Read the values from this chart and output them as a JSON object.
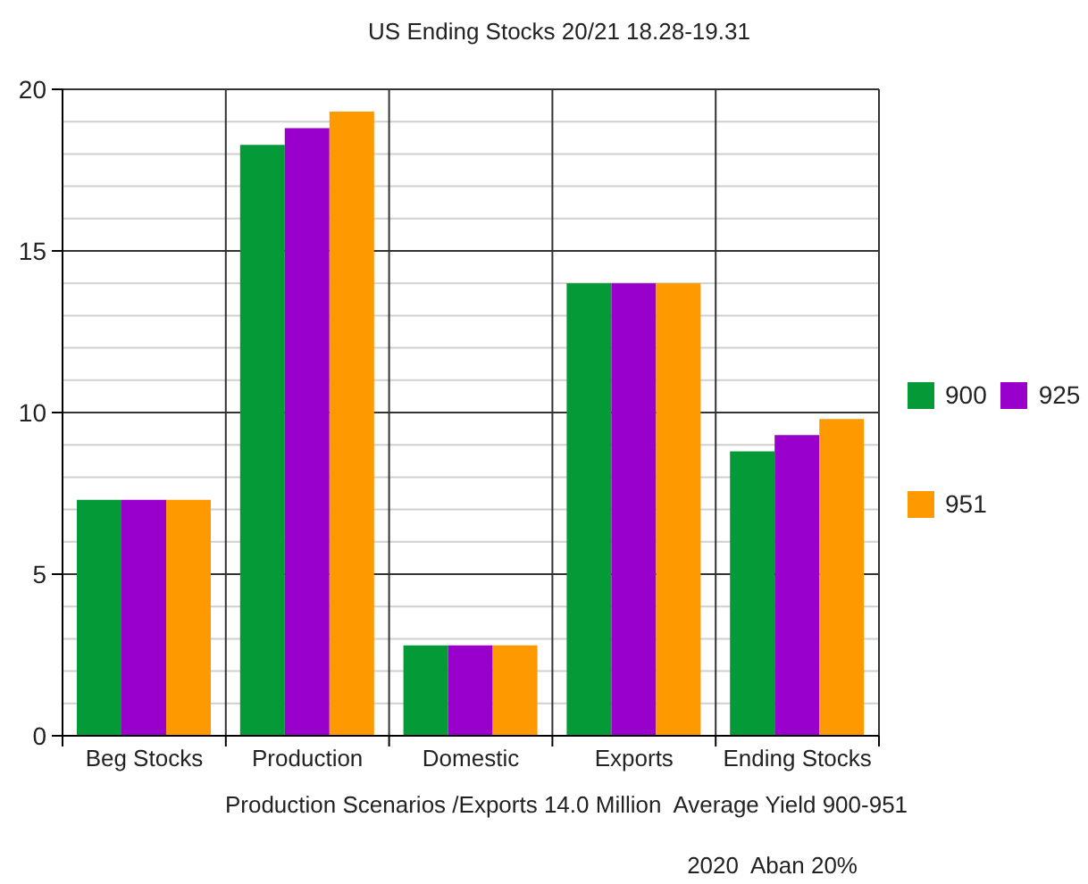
{
  "chart_data": {
    "type": "bar",
    "title": "US Ending Stocks 20/21 18.28-19.31",
    "xlabel": "Production Scenarios /Exports 14.0 Million  Average Yield 900-951",
    "annotations": [
      "2020  Aban 20%"
    ],
    "categories": [
      "Beg Stocks",
      "Production",
      "Domestic",
      "Exports",
      "Ending Stocks"
    ],
    "series": [
      {
        "name": "900",
        "color": "#059a38",
        "values": [
          7.3,
          18.28,
          2.8,
          14.0,
          8.8
        ]
      },
      {
        "name": "925",
        "color": "#9900cc",
        "values": [
          7.3,
          18.8,
          2.8,
          14.0,
          9.3
        ]
      },
      {
        "name": "951",
        "color": "#ff9900",
        "values": [
          7.3,
          19.31,
          2.8,
          14.0,
          9.8
        ]
      }
    ],
    "ylim": [
      0,
      20
    ],
    "yticks": [
      0,
      {
        "value": 1,
        "label": null
      },
      {
        "value": 2,
        "label": null
      },
      {
        "value": 3,
        "label": null
      },
      {
        "value": 4,
        "label": null
      },
      5,
      {
        "value": 6,
        "label": null
      },
      {
        "value": 7,
        "label": null
      },
      {
        "value": 8,
        "label": null
      },
      {
        "value": 9,
        "label": null
      },
      10,
      {
        "value": 11,
        "label": null
      },
      {
        "value": 12,
        "label": null
      },
      {
        "value": 13,
        "label": null
      },
      {
        "value": 14,
        "label": null
      },
      15,
      {
        "value": 16,
        "label": null
      },
      {
        "value": 17,
        "label": null
      },
      {
        "value": 18,
        "label": null
      },
      {
        "value": 19,
        "label": null
      },
      20
    ],
    "grid": true,
    "legend": "right"
  }
}
